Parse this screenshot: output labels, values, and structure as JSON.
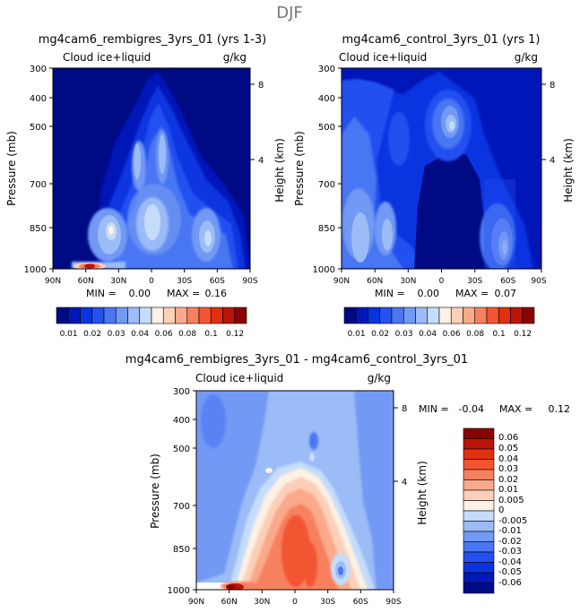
{
  "page_title": "DJF",
  "chart_data": [
    {
      "type": "contour",
      "id": "panel1",
      "title": "mg4cam6_rembigres_3yrs_01 (yrs 1-3)",
      "subtitle_left": "Cloud ice+liquid",
      "subtitle_right": "g/kg",
      "xlabel": "",
      "ylabel": "Pressure (mb)",
      "ylabel_right": "Height (km)",
      "x_ticks": [
        "90N",
        "60N",
        "30N",
        "0",
        "30S",
        "60S",
        "90S"
      ],
      "y_ticks": [
        "300",
        "400",
        "500",
        "700",
        "850",
        "1000"
      ],
      "y_ticks_right": [
        "8",
        "4"
      ],
      "stats": {
        "min_label": "MIN =",
        "min": "0.00",
        "max_label": "MAX =",
        "max": "0.16"
      },
      "contour_levels": [
        0.01,
        0.02,
        0.03,
        0.04,
        0.06,
        0.08,
        0.1,
        0.12
      ]
    },
    {
      "type": "contour",
      "id": "panel2",
      "title": "mg4cam6_control_3yrs_01 (yrs 1)",
      "subtitle_left": "Cloud ice+liquid",
      "subtitle_right": "g/kg",
      "xlabel": "",
      "ylabel": "Pressure (mb)",
      "ylabel_right": "Height (km)",
      "x_ticks": [
        "90N",
        "60N",
        "30N",
        "0",
        "30S",
        "60S",
        "90S"
      ],
      "y_ticks": [
        "300",
        "400",
        "500",
        "700",
        "850",
        "1000"
      ],
      "y_ticks_right": [
        "8",
        "4"
      ],
      "stats": {
        "min_label": "MIN =",
        "min": "0.00",
        "max_label": "MAX =",
        "max": "0.07"
      },
      "contour_levels": [
        0.01,
        0.02,
        0.03,
        0.04,
        0.06,
        0.08,
        0.1,
        0.12
      ]
    },
    {
      "type": "contour",
      "id": "panel3",
      "title": "mg4cam6_rembigres_3yrs_01 - mg4cam6_control_3yrs_01",
      "subtitle_left": "Cloud ice+liquid",
      "subtitle_right": "g/kg",
      "xlabel": "",
      "ylabel": "Pressure (mb)",
      "ylabel_right": "Height (km)",
      "x_ticks": [
        "90N",
        "60N",
        "30N",
        "0",
        "30S",
        "60S",
        "90S"
      ],
      "y_ticks": [
        "300",
        "400",
        "500",
        "700",
        "850",
        "1000"
      ],
      "y_ticks_right": [
        "8",
        "4"
      ],
      "stats": {
        "min_label": "MIN =",
        "min": "-0.04",
        "max_label": "MAX =",
        "max": "0.12"
      },
      "contour_levels": [
        -0.06,
        -0.05,
        -0.04,
        -0.03,
        -0.02,
        -0.01,
        -0.005,
        0,
        0.005,
        0.01,
        0.02,
        0.03,
        0.04,
        0.05,
        0.06
      ]
    }
  ],
  "colorbars": {
    "top": {
      "labels": [
        "0.01",
        "0.02",
        "0.03",
        "0.04",
        "0.06",
        "0.08",
        "0.1",
        "0.12"
      ],
      "colors": [
        "#000a85",
        "#0018b8",
        "#0a34e0",
        "#2450f0",
        "#4a76f2",
        "#7299f4",
        "#9bbcf6",
        "#c5dcfa",
        "#fdf0e4",
        "#fccfb8",
        "#faa98a",
        "#f7805e",
        "#f25530",
        "#e0300f",
        "#bb1408",
        "#8a0303"
      ]
    },
    "diff": {
      "labels": [
        "0.06",
        "0.05",
        "0.04",
        "0.03",
        "0.02",
        "0.01",
        "0.005",
        "0",
        "-0.005",
        "-0.01",
        "-0.02",
        "-0.03",
        "-0.04",
        "-0.05",
        "-0.06"
      ],
      "colors": [
        "#8a0303",
        "#bb1408",
        "#e0300f",
        "#f25530",
        "#f7805e",
        "#faa98a",
        "#fccfb8",
        "#fdf0e4",
        "#c5dcfa",
        "#9bbcf6",
        "#7299f4",
        "#4a76f2",
        "#2450f0",
        "#0a34e0",
        "#0018b8",
        "#000a85"
      ]
    }
  }
}
